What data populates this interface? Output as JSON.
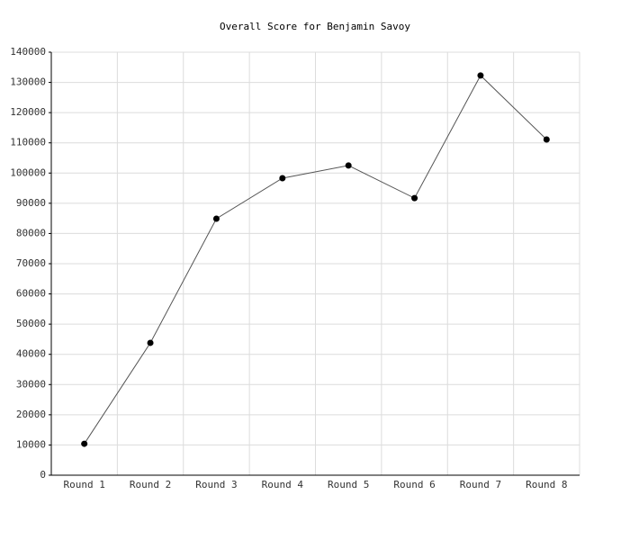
{
  "chart_data": {
    "type": "line",
    "title": "Overall Score for Benjamin Savoy",
    "categories": [
      "Round 1",
      "Round 2",
      "Round 3",
      "Round 4",
      "Round 5",
      "Round 6",
      "Round 7",
      "Round 8"
    ],
    "values": [
      10400,
      43800,
      84900,
      98300,
      102500,
      91700,
      132300,
      111100
    ],
    "color": "#000000",
    "ylim": [
      0,
      140000
    ],
    "yticks": [
      0,
      10000,
      20000,
      30000,
      40000,
      50000,
      60000,
      70000,
      80000,
      90000,
      100000,
      110000,
      120000,
      130000,
      140000
    ],
    "grid": true
  }
}
